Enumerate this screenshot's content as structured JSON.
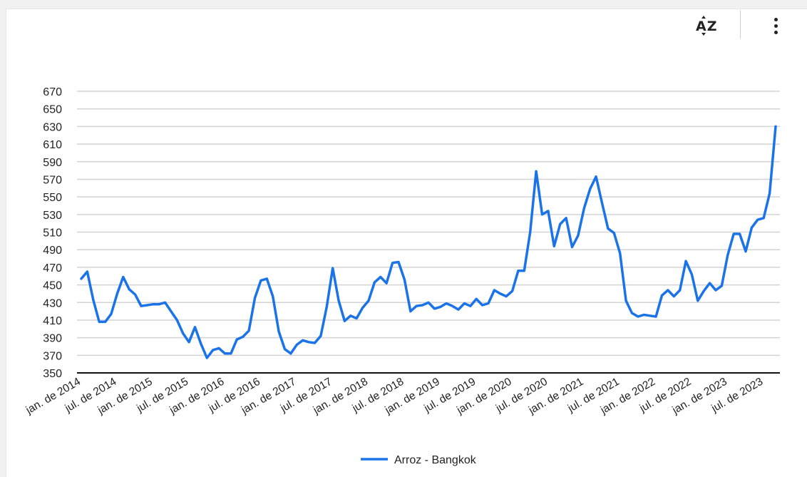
{
  "toolbar": {
    "sort_icon": "sort-az-icon",
    "sort_letters": "AZ",
    "more_icon": "more-vert-icon"
  },
  "chart_data": {
    "type": "line",
    "title": "",
    "xlabel": "",
    "ylabel": "",
    "ylim": [
      350,
      670
    ],
    "yticks": [
      350,
      370,
      390,
      410,
      430,
      450,
      470,
      490,
      510,
      530,
      550,
      570,
      590,
      610,
      630,
      650,
      670
    ],
    "grid": true,
    "legend_position": "bottom",
    "x_tick_labels": [
      "jan. de 2014",
      "jul. de 2014",
      "jan. de 2015",
      "jul. de 2015",
      "jan. de 2016",
      "jul. de 2016",
      "jan. de 2017",
      "jul. de 2017",
      "jan. de 2018",
      "jul. de 2018",
      "jan. de 2019",
      "jul. de 2019",
      "jan. de 2020",
      "jul. de 2020",
      "jan. de 2021",
      "jul. de 2021",
      "jan. de 2022",
      "jul. de 2022",
      "jan. de 2023",
      "jul. de 2023"
    ],
    "series": [
      {
        "name": "Arroz - Bangkok",
        "color": "#1a73e8",
        "values": [
          457,
          465,
          433,
          408,
          408,
          417,
          440,
          459,
          445,
          439,
          426,
          427,
          428,
          428,
          430,
          420,
          410,
          395,
          385,
          402,
          383,
          367,
          376,
          378,
          372,
          372,
          388,
          391,
          398,
          435,
          455,
          457,
          437,
          397,
          377,
          372,
          382,
          387,
          385,
          384,
          392,
          425,
          469,
          432,
          409,
          415,
          412,
          424,
          432,
          453,
          459,
          452,
          475,
          476,
          456,
          420,
          426,
          427,
          430,
          423,
          425,
          429,
          426,
          422,
          429,
          426,
          434,
          427,
          429,
          444,
          440,
          437,
          443,
          466,
          466,
          510,
          579,
          530,
          534,
          494,
          519,
          526,
          493,
          506,
          537,
          559,
          573,
          543,
          514,
          509,
          486,
          432,
          418,
          414,
          416,
          415,
          414,
          438,
          444,
          437,
          444,
          477,
          462,
          432,
          443,
          452,
          444,
          449,
          484,
          508,
          508,
          488,
          515,
          524,
          526,
          554,
          630
        ]
      }
    ]
  }
}
